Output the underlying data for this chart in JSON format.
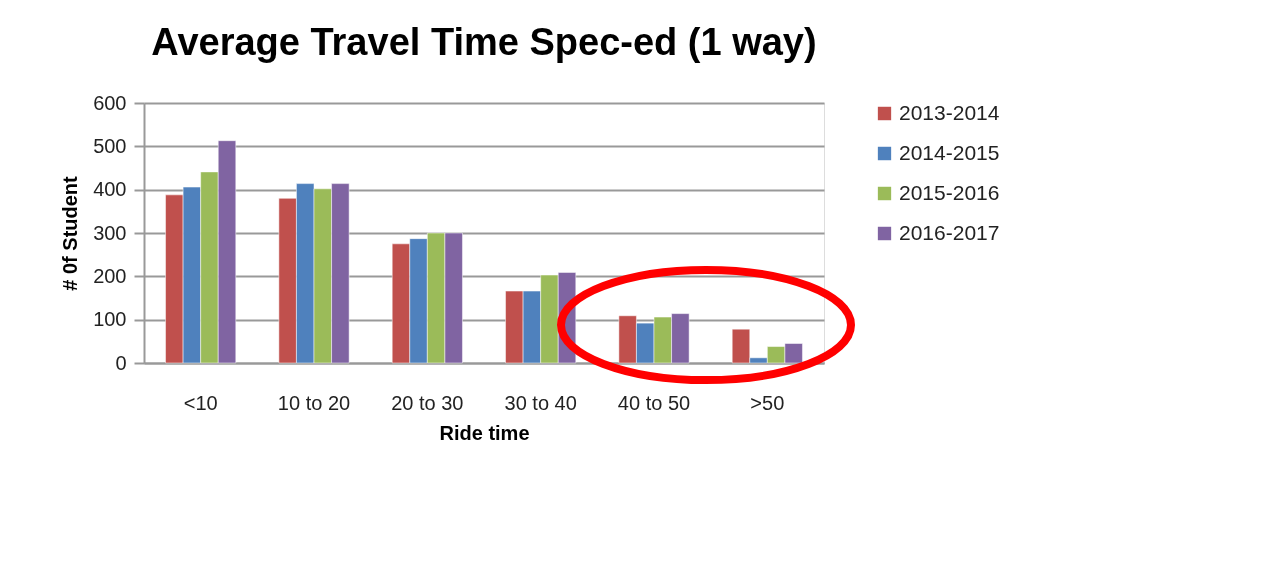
{
  "chart_data": {
    "type": "bar",
    "title": "Average Travel Time Spec-ed (1 way)",
    "xlabel": "Ride time",
    "ylabel": "# 0f Student",
    "categories": [
      "<10",
      "10 to 20",
      "20 to 30",
      "30 to 40",
      "40 to 50",
      ">50"
    ],
    "series": [
      {
        "name": "2013-2014",
        "color": "#c0504d",
        "values": [
          388,
          380,
          275,
          166,
          109,
          78
        ]
      },
      {
        "name": "2014-2015",
        "color": "#4f81bd",
        "values": [
          406,
          414,
          287,
          166,
          92,
          12
        ]
      },
      {
        "name": "2015-2016",
        "color": "#9bbb59",
        "values": [
          441,
          402,
          300,
          203,
          106,
          38
        ]
      },
      {
        "name": "2016-2017",
        "color": "#8064a2",
        "values": [
          513,
          414,
          300,
          209,
          114,
          45
        ]
      }
    ],
    "ylim": [
      0,
      600
    ],
    "yticks": [
      0,
      100,
      200,
      300,
      400,
      500,
      600
    ],
    "grid": "y",
    "legend": "right"
  }
}
